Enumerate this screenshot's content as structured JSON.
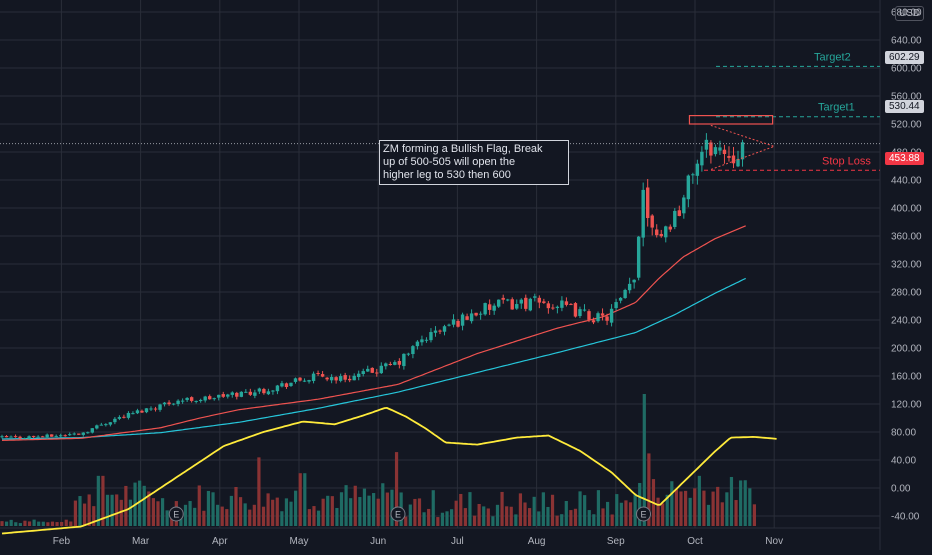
{
  "currency": "USD",
  "price_axis": {
    "ticks": [
      680,
      640,
      600,
      560,
      520,
      480,
      440,
      400,
      360,
      320,
      280,
      240,
      200,
      160,
      120,
      80,
      40,
      0,
      -40
    ],
    "labels": [
      "680.00",
      "640.00",
      "600.00",
      "560.00",
      "520.00",
      "480.00",
      "440.00",
      "400.00",
      "360.00",
      "320.00",
      "280.00",
      "240.00",
      "200.00",
      "160.00",
      "120.00",
      "80.00",
      "40.00",
      "0.00",
      "-40.00"
    ]
  },
  "time_axis": {
    "labels": [
      "Feb",
      "Mar",
      "Apr",
      "May",
      "Jun",
      "Jul",
      "Aug",
      "Sep",
      "Oct",
      "Nov"
    ],
    "months": [
      1,
      2,
      3,
      4,
      5,
      6,
      7,
      8,
      9,
      10
    ]
  },
  "annotation": {
    "text_lines": [
      "ZM forming a Bullish Flag, Break",
      "up of 500-505 will open the",
      "higher leg to 530 then 600"
    ]
  },
  "levels": {
    "target2": {
      "label": "Target2",
      "value": 602.29,
      "value_label": "602.29",
      "color": "#26a69a"
    },
    "target1": {
      "label": "Target1",
      "value": 530.44,
      "value_label": "530.44",
      "color": "#26a69a"
    },
    "stop_loss": {
      "label": "Stop Loss",
      "value": 453.88,
      "value_label": "453.88",
      "color": "#f23645"
    },
    "current": {
      "value": 492
    }
  },
  "colors": {
    "bg": "#131722",
    "up": "#26a69a",
    "down": "#ef5350",
    "ma_fast": "#ef5350",
    "ma_slow": "#26c6da",
    "oscillator": "#ffeb3b",
    "grid": "#2a2e39",
    "text": "#b2b5be"
  },
  "event_markers": {
    "label": "E",
    "months": [
      2.2,
      5.0,
      8.1
    ]
  },
  "chart_data": {
    "type": "candlestick",
    "x_unit": "month index (1 = start of Feb 2020)",
    "ylim": [
      -60,
      690
    ],
    "close_keypoints": [
      [
        0.0,
        72
      ],
      [
        0.6,
        74
      ],
      [
        1.0,
        78
      ],
      [
        1.4,
        98
      ],
      [
        1.8,
        112
      ],
      [
        2.2,
        125
      ],
      [
        2.6,
        128
      ],
      [
        3.0,
        135
      ],
      [
        3.3,
        140
      ],
      [
        3.7,
        152
      ],
      [
        4.0,
        160
      ],
      [
        4.3,
        156
      ],
      [
        4.6,
        164
      ],
      [
        5.0,
        178
      ],
      [
        5.3,
        212
      ],
      [
        5.6,
        230
      ],
      [
        6.0,
        252
      ],
      [
        6.3,
        262
      ],
      [
        6.7,
        265
      ],
      [
        7.0,
        262
      ],
      [
        7.3,
        250
      ],
      [
        7.6,
        240
      ],
      [
        7.85,
        272
      ],
      [
        8.0,
        300
      ],
      [
        8.08,
        440
      ],
      [
        8.15,
        395
      ],
      [
        8.3,
        360
      ],
      [
        8.45,
        382
      ],
      [
        8.6,
        410
      ],
      [
        8.75,
        465
      ],
      [
        8.85,
        478
      ],
      [
        8.95,
        490
      ],
      [
        9.1,
        480
      ],
      [
        9.25,
        478
      ],
      [
        9.35,
        492
      ]
    ],
    "ma_fast_keypoints": [
      [
        0.0,
        68
      ],
      [
        1.0,
        71
      ],
      [
        2.0,
        86
      ],
      [
        2.5,
        100
      ],
      [
        3.0,
        112
      ],
      [
        4.0,
        127
      ],
      [
        5.0,
        148
      ],
      [
        6.0,
        192
      ],
      [
        7.0,
        228
      ],
      [
        7.6,
        245
      ],
      [
        8.0,
        265
      ],
      [
        8.3,
        300
      ],
      [
        8.6,
        330
      ],
      [
        9.0,
        356
      ],
      [
        9.4,
        375
      ]
    ],
    "ma_slow_keypoints": [
      [
        0.0,
        70
      ],
      [
        1.0,
        72
      ],
      [
        2.0,
        79
      ],
      [
        3.0,
        94
      ],
      [
        4.0,
        114
      ],
      [
        5.0,
        137
      ],
      [
        6.0,
        165
      ],
      [
        7.0,
        193
      ],
      [
        8.0,
        222
      ],
      [
        8.5,
        248
      ],
      [
        9.0,
        278
      ],
      [
        9.4,
        300
      ]
    ],
    "oscillator_keypoints": [
      [
        0.0,
        -65
      ],
      [
        1.0,
        -55
      ],
      [
        1.6,
        -30
      ],
      [
        2.2,
        15
      ],
      [
        2.8,
        60
      ],
      [
        3.3,
        80
      ],
      [
        3.8,
        95
      ],
      [
        4.2,
        91
      ],
      [
        4.6,
        105
      ],
      [
        4.85,
        115
      ],
      [
        5.1,
        102
      ],
      [
        5.35,
        85
      ],
      [
        5.6,
        65
      ],
      [
        6.0,
        62
      ],
      [
        6.5,
        72
      ],
      [
        6.9,
        75
      ],
      [
        7.3,
        53
      ],
      [
        7.7,
        22
      ],
      [
        8.0,
        -10
      ],
      [
        8.3,
        -25
      ],
      [
        8.6,
        8
      ],
      [
        9.0,
        52
      ],
      [
        9.2,
        72
      ],
      [
        9.5,
        73
      ],
      [
        9.8,
        70
      ]
    ],
    "volume_spikes": [
      [
        3.25,
        0.52
      ],
      [
        5.0,
        0.56
      ],
      [
        8.1,
        1.0
      ],
      [
        8.15,
        0.55
      ],
      [
        1.25,
        0.38
      ],
      [
        3.8,
        0.4
      ],
      [
        8.8,
        0.38
      ]
    ]
  }
}
